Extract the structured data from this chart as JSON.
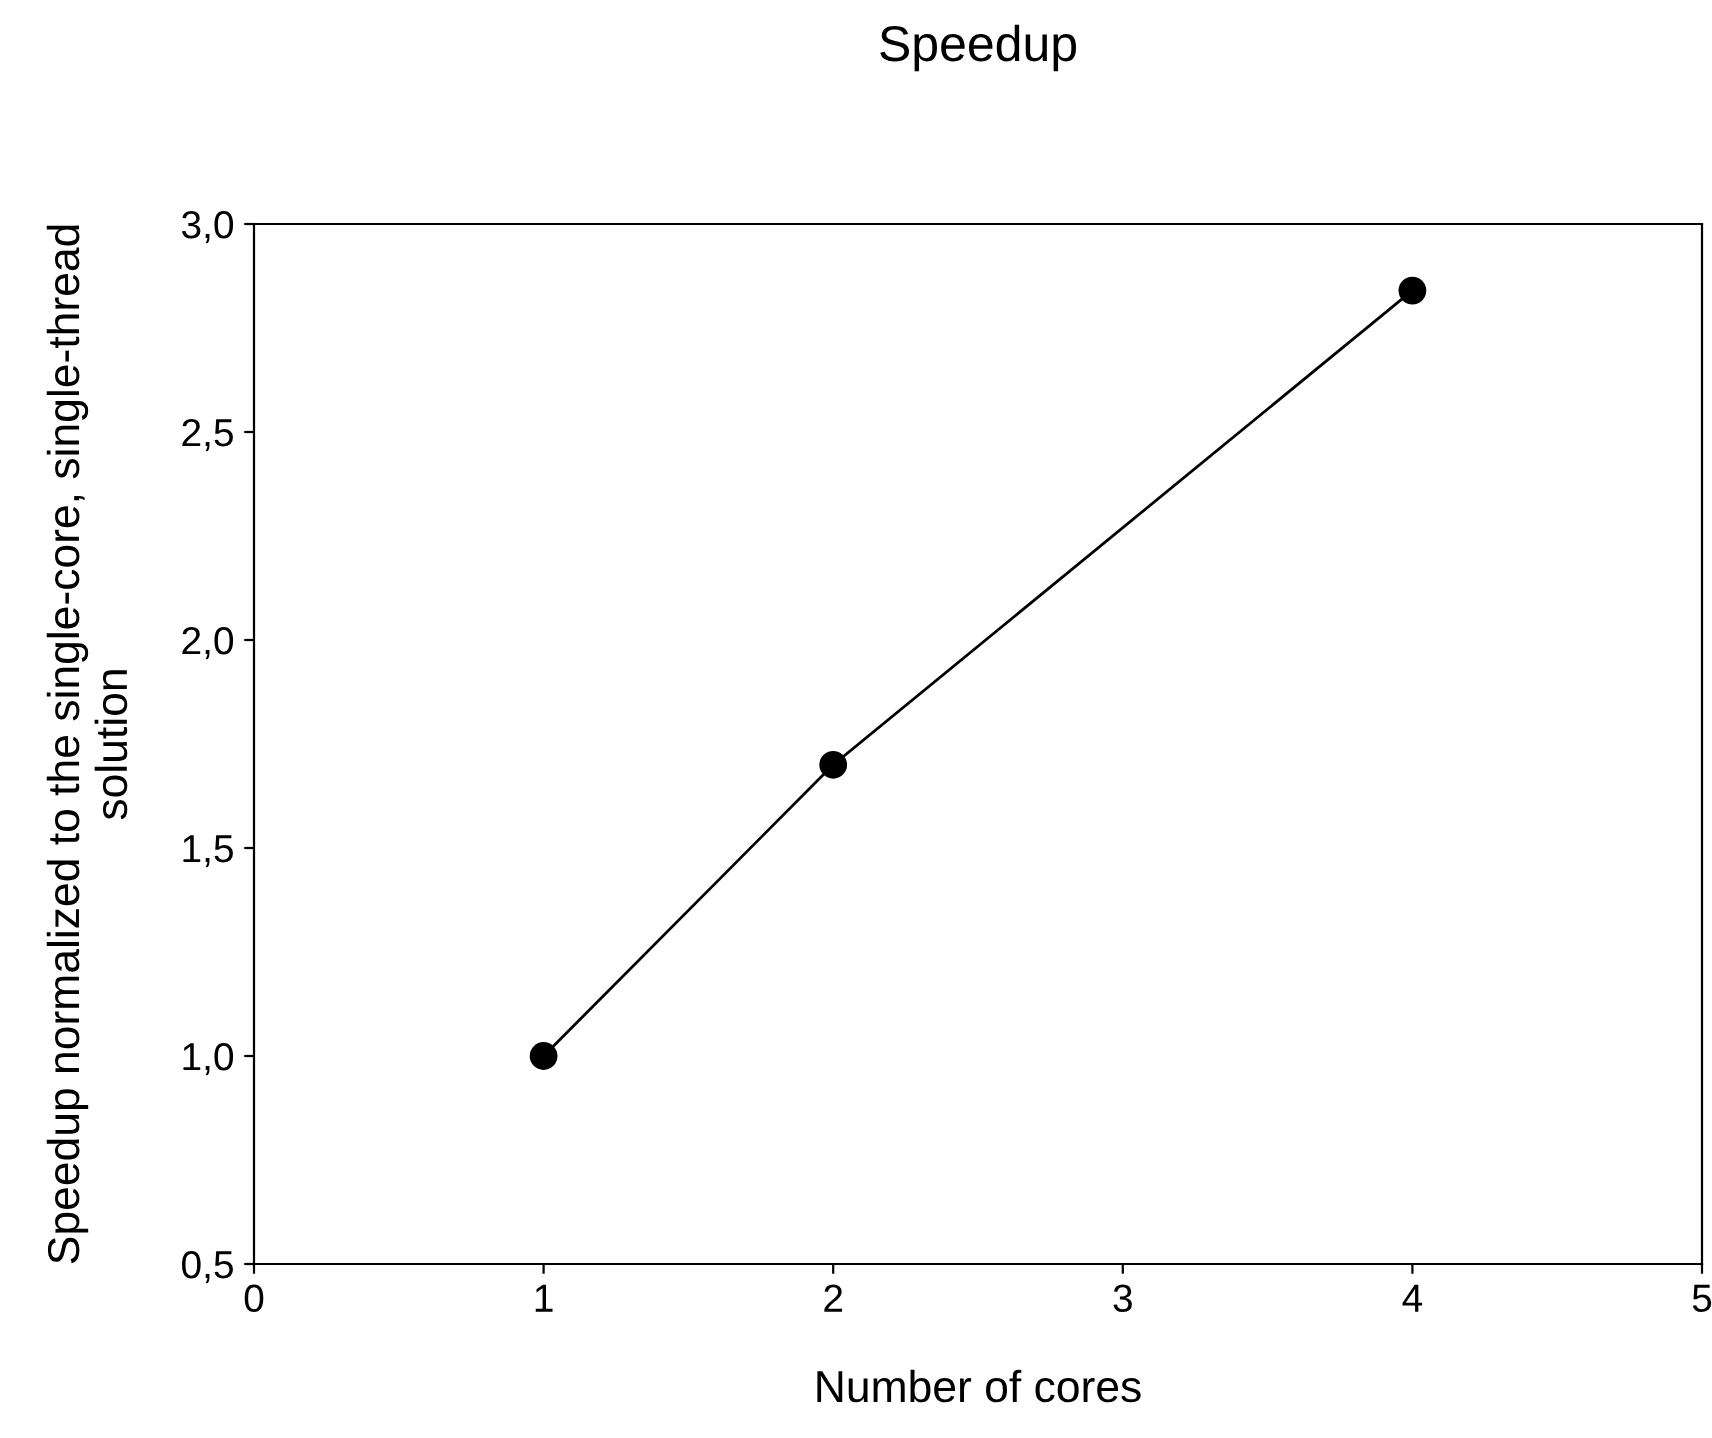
{
  "chart_data": {
    "type": "line",
    "title": "Speedup",
    "xlabel": "Number of cores",
    "ylabel": "Speedup normalized to the single-core, single-thread\nsolution",
    "x": [
      1,
      2,
      4
    ],
    "series": [
      {
        "color": "#000000",
        "values": [
          1.0,
          1.7,
          2.84
        ]
      }
    ],
    "marker": "circle",
    "line_style": "solid",
    "grid": false,
    "legend": false,
    "xlim": [
      0,
      5
    ],
    "xticks": [
      0,
      1,
      2,
      3,
      4,
      5
    ],
    "ylim": [
      0.5,
      3.0
    ],
    "yticks": [
      {
        "value": 0.5,
        "label": "0,5"
      },
      {
        "value": 1.0,
        "label": "1,0"
      },
      {
        "value": 1.5,
        "label": "1,5"
      },
      {
        "value": 2.0,
        "label": "2,0"
      },
      {
        "value": 2.5,
        "label": "2,5"
      },
      {
        "value": 3.0,
        "label": "3,0"
      }
    ]
  }
}
